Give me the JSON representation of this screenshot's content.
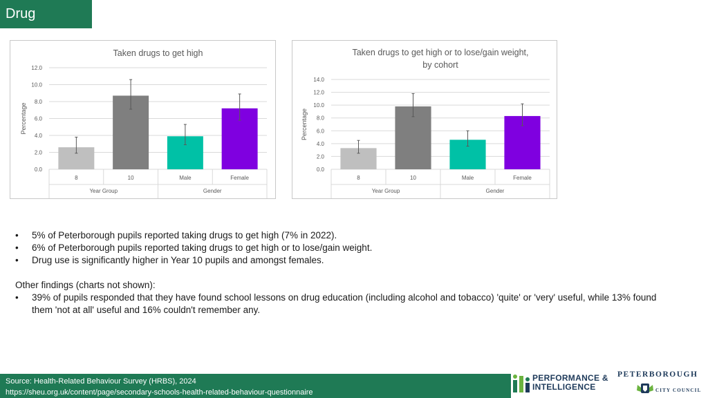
{
  "header": {
    "title": "Drug"
  },
  "colors": {
    "brand_green": "#1f7a55",
    "year8": "#bfbfbf",
    "year10": "#7f7f7f",
    "male": "#00c1a6",
    "female": "#7f00e0"
  },
  "chart_data": [
    {
      "type": "bar",
      "title": "Taken drugs to get high",
      "title_lines": [
        "Taken drugs to get high"
      ],
      "ylabel": "Percentage",
      "ylim": [
        0,
        12
      ],
      "yticks": [
        "0.0",
        "2.0",
        "4.0",
        "6.0",
        "8.0",
        "10.0",
        "12.0"
      ],
      "categories": [
        "8",
        "10",
        "Male",
        "Female"
      ],
      "groups": [
        "Year Group",
        "Gender"
      ],
      "values": [
        2.6,
        8.7,
        3.9,
        7.2
      ],
      "err_low": [
        1.9,
        7.1,
        2.9,
        5.8
      ],
      "err_high": [
        3.8,
        10.6,
        5.3,
        8.9
      ],
      "colors": [
        "#bfbfbf",
        "#7f7f7f",
        "#00c1a6",
        "#7f00e0"
      ]
    },
    {
      "type": "bar",
      "title": "Taken drugs to get high or to lose/gain weight, by cohort",
      "title_lines": [
        "Taken drugs to get high or to lose/gain weight,",
        "by cohort"
      ],
      "ylabel": "Percentage",
      "ylim": [
        0,
        14
      ],
      "yticks": [
        "0.0",
        "2.0",
        "4.0",
        "6.0",
        "8.0",
        "10.0",
        "12.0",
        "14.0"
      ],
      "categories": [
        "8",
        "10",
        "Male",
        "Female"
      ],
      "groups": [
        "Year Group",
        "Gender"
      ],
      "values": [
        3.3,
        9.8,
        4.6,
        8.3
      ],
      "err_low": [
        2.5,
        8.2,
        3.6,
        6.8
      ],
      "err_high": [
        4.5,
        11.8,
        6.0,
        10.2
      ],
      "colors": [
        "#bfbfbf",
        "#7f7f7f",
        "#00c1a6",
        "#7f00e0"
      ]
    }
  ],
  "bullets": [
    "5% of Peterborough pupils reported taking drugs to get high (7% in 2022).",
    "6% of Peterborough pupils reported taking drugs to get high or to lose/gain weight.",
    "Drug use is significantly higher in Year 10 pupils and amongst females."
  ],
  "other_findings": {
    "heading": "Other findings (charts not shown):",
    "items": [
      "39% of pupils responded that they have found school lessons on drug education (including alcohol and tobacco) 'quite' or 'very' useful, while 13% found them 'not at all' useful and 16% couldn't remember any."
    ]
  },
  "footer": {
    "source_line": "Source: Health-Related Behaviour Survey (HRBS), 2024",
    "url_line": "https://sheu.org.uk/content/page/secondary-schools-health-related-behaviour-questionnaire"
  },
  "logos": {
    "pi_line1": "PERFORMANCE &",
    "pi_line2": "INTELLIGENCE",
    "council_line1": "PETERBOROUGH",
    "council_line2": "CITY COUNCIL"
  }
}
